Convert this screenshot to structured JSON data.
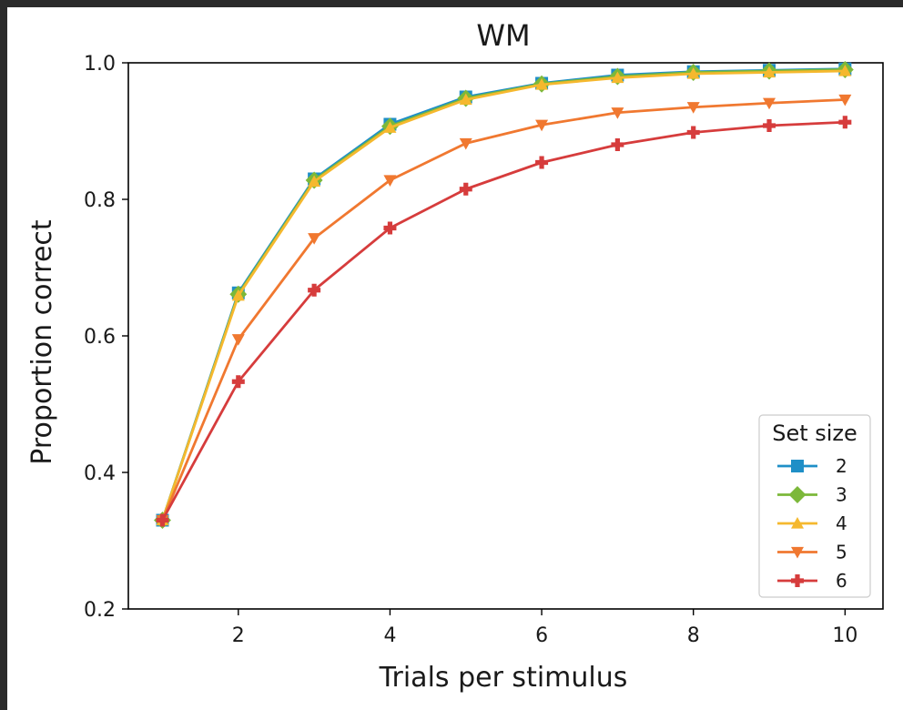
{
  "chart_data": {
    "type": "line",
    "title": "WM",
    "xlabel": "Trials per stimulus",
    "ylabel": "Proportion correct",
    "xlim": [
      0.55,
      10.5
    ],
    "ylim": [
      0.2,
      1.0
    ],
    "xticks": [
      2,
      4,
      6,
      8,
      10
    ],
    "yticks": [
      0.2,
      0.4,
      0.6,
      0.8,
      1.0
    ],
    "xtick_labels": [
      "2",
      "4",
      "6",
      "8",
      "10"
    ],
    "ytick_labels": [
      "0.2",
      "0.4",
      "0.6",
      "0.8",
      "1.0"
    ],
    "grid": false,
    "legend": {
      "title": "Set size",
      "placement": "lower-right"
    },
    "x": [
      1,
      2,
      3,
      4,
      5,
      6,
      7,
      8,
      9,
      10
    ],
    "series": [
      {
        "name": "2",
        "color": "#1f8fc7",
        "marker": "square",
        "values": [
          0.33,
          0.663,
          0.83,
          0.91,
          0.95,
          0.97,
          0.982,
          0.987,
          0.989,
          0.991
        ]
      },
      {
        "name": "3",
        "color": "#7cb83a",
        "marker": "diamond",
        "values": [
          0.33,
          0.661,
          0.828,
          0.907,
          0.948,
          0.969,
          0.98,
          0.986,
          0.988,
          0.99
        ]
      },
      {
        "name": "4",
        "color": "#f5b82e",
        "marker": "triangle-up",
        "values": [
          0.33,
          0.659,
          0.826,
          0.905,
          0.946,
          0.968,
          0.978,
          0.984,
          0.986,
          0.988
        ]
      },
      {
        "name": "5",
        "color": "#f07830",
        "marker": "triangle-down",
        "values": [
          0.33,
          0.595,
          0.743,
          0.828,
          0.882,
          0.909,
          0.927,
          0.935,
          0.941,
          0.946
        ]
      },
      {
        "name": "6",
        "color": "#d63c3c",
        "marker": "plus",
        "values": [
          0.33,
          0.533,
          0.667,
          0.758,
          0.815,
          0.854,
          0.88,
          0.898,
          0.908,
          0.913
        ]
      }
    ]
  }
}
